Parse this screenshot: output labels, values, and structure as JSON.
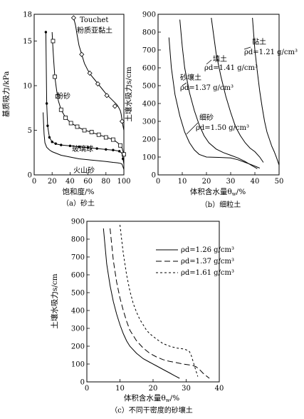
{
  "chart_data": [
    {
      "id": "a",
      "type": "line",
      "caption": "（a）砂土",
      "xlabel": "饱和度/%",
      "ylabel": "基质吸力/kPa",
      "xlim": [
        0,
        100
      ],
      "ylim": [
        0,
        18
      ],
      "xticks": [
        0,
        20,
        40,
        60,
        80,
        100
      ],
      "xtick_labels": [
        "0",
        "20",
        "40",
        "60",
        "80",
        "100"
      ],
      "yticks": [
        0,
        5,
        10,
        15,
        18
      ],
      "ytick_labels": [
        "0",
        "5",
        "10",
        "15",
        "18"
      ],
      "grid": false,
      "legend": "none",
      "series": [
        {
          "name": "Touchet 粉质亚黏土",
          "marker": "diamond",
          "x": [
            44,
            46,
            48,
            50,
            53,
            56,
            60,
            64,
            68,
            72,
            76,
            80,
            84,
            88,
            92,
            94,
            96,
            97,
            98,
            99,
            100
          ],
          "y": [
            17.6,
            16.8,
            15.6,
            14.5,
            13.5,
            12.5,
            11.7,
            11.1,
            10.6,
            10.1,
            9.6,
            9.1,
            8.7,
            8.3,
            7.9,
            7.6,
            7.2,
            6.8,
            6.1,
            5.5,
            5.0
          ],
          "marker_x": [
            44,
            53,
            62,
            71,
            81,
            90,
            98
          ],
          "marker_y": [
            17.6,
            13.5,
            11.4,
            10.2,
            8.9,
            7.7,
            6.0
          ]
        },
        {
          "name": "粉砂",
          "marker": "square",
          "x": [
            20,
            20.5,
            21,
            22,
            23,
            25,
            27,
            30,
            34,
            38,
            43,
            48,
            54,
            60,
            66,
            72,
            78,
            84,
            89,
            93,
            96,
            98,
            100
          ],
          "y": [
            16,
            15,
            14,
            12.5,
            11,
            9.5,
            8.3,
            7.3,
            6.6,
            6.1,
            5.7,
            5.4,
            5.1,
            4.9,
            4.7,
            4.5,
            4.3,
            4.1,
            3.9,
            3.6,
            3.3,
            3.0,
            2.3
          ],
          "marker_x": [
            21,
            23,
            26,
            30,
            35,
            41,
            48,
            56,
            64,
            72,
            80,
            88,
            96,
            100
          ],
          "marker_y": [
            15,
            11,
            8.8,
            7.3,
            6.4,
            5.8,
            5.4,
            5.0,
            4.8,
            4.5,
            4.2,
            3.95,
            3.3,
            2.3
          ]
        },
        {
          "name": "玻璃球",
          "marker": "dot",
          "x": [
            13,
            13.5,
            14,
            15,
            17,
            20,
            25,
            30,
            40,
            50,
            60,
            70,
            80,
            90,
            95,
            98,
            100
          ],
          "y": [
            16,
            12,
            8,
            5.5,
            4.2,
            3.7,
            3.45,
            3.35,
            3.25,
            3.15,
            3.05,
            2.95,
            2.85,
            2.75,
            2.65,
            2.4,
            1.2
          ],
          "marker_x": [
            13,
            14,
            15,
            17,
            20,
            24,
            30,
            40,
            50,
            60,
            70,
            80,
            88,
            95,
            99
          ],
          "marker_y": [
            16,
            8,
            5.5,
            4.2,
            3.7,
            3.5,
            3.35,
            3.25,
            3.15,
            3.05,
            2.95,
            2.85,
            2.78,
            2.65,
            1.8
          ]
        },
        {
          "name": "火山砂",
          "marker": "none",
          "x": [
            10,
            10.5,
            11,
            12,
            14,
            17,
            20,
            25,
            30,
            40,
            50,
            60,
            70,
            80,
            88,
            93,
            96,
            98,
            100
          ],
          "y": [
            7,
            5.8,
            4.6,
            3.6,
            3.1,
            2.8,
            2.6,
            2.4,
            2.2,
            2.0,
            1.8,
            1.7,
            1.6,
            1.5,
            1.4,
            1.35,
            1.3,
            1.2,
            0.6
          ]
        }
      ],
      "annotations": [
        "Touchet",
        "粉质亚黏土",
        "粉砂",
        "玻璃球",
        "火山砂"
      ]
    },
    {
      "id": "b",
      "type": "line",
      "caption": "（b）细粒土",
      "xlabel": "体积含水量θ",
      "xlabel_sub": "w",
      "xlabel_unit": "/%",
      "ylabel": "土壤水吸力s/cm",
      "xlim": [
        0,
        50
      ],
      "ylim": [
        0,
        900
      ],
      "xticks": [
        0,
        10,
        20,
        30,
        40,
        50
      ],
      "xtick_labels": [
        "0",
        "10",
        "20",
        "30",
        "40",
        "50"
      ],
      "yticks": [
        0,
        100,
        200,
        300,
        400,
        500,
        600,
        700,
        800,
        900
      ],
      "ytick_labels": [
        "0",
        "100",
        "200",
        "300",
        "400",
        "500",
        "600",
        "700",
        "800",
        "900"
      ],
      "grid": false,
      "legend": "none",
      "series": [
        {
          "name": "细砂",
          "x": [
            4.5,
            5.5,
            7,
            9,
            11,
            13,
            15,
            17,
            20,
            25,
            30,
            33,
            36,
            39,
            42
          ],
          "y": [
            770,
            600,
            450,
            330,
            240,
            180,
            140,
            115,
            100,
            98,
            95,
            85,
            70,
            55,
            38
          ]
        },
        {
          "name": "砂壤土",
          "x": [
            9,
            10,
            11,
            13,
            15,
            17,
            19,
            21,
            24,
            27,
            30,
            33,
            36,
            39,
            41
          ],
          "y": [
            870,
            720,
            600,
            460,
            360,
            280,
            220,
            180,
            145,
            125,
            110,
            95,
            75,
            50,
            35
          ]
        },
        {
          "name": "填土",
          "x": [
            22,
            23,
            24,
            26,
            28,
            30,
            32,
            34,
            36,
            38,
            40,
            42,
            43.5
          ],
          "y": [
            880,
            780,
            680,
            550,
            440,
            350,
            270,
            220,
            180,
            150,
            130,
            100,
            70
          ]
        },
        {
          "name": "黏土",
          "x": [
            39,
            39.5,
            40,
            41,
            42,
            43,
            44,
            45,
            46,
            47,
            48,
            49,
            50
          ],
          "y": [
            880,
            790,
            700,
            580,
            470,
            380,
            300,
            240,
            200,
            160,
            130,
            95,
            55
          ]
        }
      ],
      "annotations": [
        {
          "name": "细砂",
          "density": "ρd=1.50 g/cm³"
        },
        {
          "name": "砂壤土",
          "density": "ρd=1.37 g/cm³"
        },
        {
          "name": "填土",
          "density": "ρd=1.41 g/cm³"
        },
        {
          "name": "黏土",
          "density": "ρd=1.21 g/cm³"
        }
      ]
    },
    {
      "id": "c",
      "type": "line",
      "caption": "（c）不同干密度的砂壤土",
      "xlabel": "体积含水量θ",
      "xlabel_sub": "w",
      "xlabel_unit": "/%",
      "ylabel": "土壤水吸力s/cm",
      "xlim": [
        0,
        40
      ],
      "ylim": [
        0,
        900
      ],
      "xticks": [
        0,
        10,
        20,
        30,
        40
      ],
      "xtick_labels": [
        "0",
        "10",
        "20",
        "30",
        "40"
      ],
      "yticks": [
        0,
        100,
        200,
        300,
        400,
        500,
        600,
        700,
        800,
        900
      ],
      "ytick_labels": [
        "0",
        "100",
        "200",
        "300",
        "400",
        "500",
        "600",
        "700",
        "800",
        "900"
      ],
      "grid": false,
      "legend": "top-right",
      "series": [
        {
          "name": "ρd=1.26 g/cm³",
          "dash": "solid",
          "x": [
            5,
            5.5,
            6,
            7,
            8,
            9,
            10,
            11,
            12,
            13,
            15,
            17,
            19,
            21,
            23,
            25,
            26.5,
            28
          ],
          "y": [
            860,
            760,
            660,
            540,
            450,
            380,
            320,
            270,
            230,
            200,
            160,
            130,
            110,
            90,
            70,
            50,
            35,
            20
          ]
        },
        {
          "name": "ρd=1.37 g/cm³",
          "dash": "dashed",
          "x": [
            7,
            7.5,
            8,
            9,
            10,
            11,
            12,
            13,
            15,
            17,
            19,
            21,
            23,
            25,
            27,
            29,
            31,
            32,
            33,
            34,
            35,
            36,
            37
          ],
          "y": [
            860,
            770,
            680,
            560,
            470,
            400,
            340,
            290,
            230,
            190,
            160,
            140,
            125,
            115,
            108,
            100,
            95,
            92,
            85,
            70,
            50,
            35,
            20
          ]
        },
        {
          "name": "ρd=1.61 g/cm³",
          "dash": "dotted",
          "x": [
            10,
            10.5,
            11,
            12,
            13,
            14,
            15,
            16,
            17,
            18,
            19,
            21,
            23,
            25,
            27,
            29,
            30,
            31,
            31.5,
            32,
            32.5,
            33,
            33.5
          ],
          "y": [
            880,
            800,
            720,
            600,
            510,
            440,
            390,
            350,
            320,
            290,
            270,
            240,
            215,
            200,
            190,
            185,
            180,
            170,
            150,
            120,
            90,
            60,
            30
          ]
        }
      ]
    }
  ]
}
